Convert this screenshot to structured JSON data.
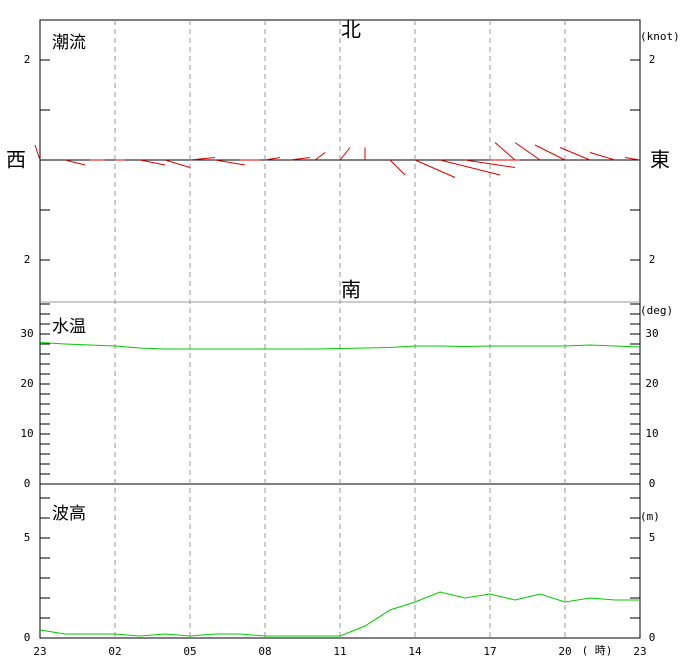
{
  "chart_data": [
    {
      "type": "vector",
      "title": "潮流",
      "unit": "(knot)",
      "north": "北",
      "south": "南",
      "west": "西",
      "east": "東",
      "ylim": [
        -2.84,
        2.8
      ],
      "yticks": [
        2,
        {
          "value": -2,
          "label": "2"
        }
      ],
      "minor_yticks": [
        -1,
        0,
        1
      ],
      "color": "#dd0000",
      "series": [
        {
          "name": "east",
          "values": [
            -0.1,
            0.4,
            0.3,
            0.2,
            0.5,
            0.5,
            0.5,
            0.6,
            0.4,
            0.3,
            0.4,
            0.2,
            0.2,
            0,
            0.3,
            0.8,
            1.2,
            1.0,
            0.6,
            -0.4,
            -0.5,
            -0.6,
            -0.6,
            -0.5,
            -0.3
          ]
        },
        {
          "name": "north",
          "values": [
            0.3,
            -0.1,
            0,
            0,
            -0.1,
            -0.15,
            0.05,
            -0.1,
            0,
            0.05,
            0.05,
            0.15,
            0.25,
            0.25,
            -0.3,
            -0.35,
            -0.3,
            -0.15,
            0,
            0.35,
            0.35,
            0.3,
            0.25,
            0.15,
            0.05
          ]
        }
      ]
    },
    {
      "type": "line",
      "title": "水温",
      "unit": "(deg)",
      "ylim": [
        0,
        36.4
      ],
      "yticks": [
        0,
        10,
        20,
        30
      ],
      "minor_yticks": [
        2,
        4,
        6,
        8,
        12,
        14,
        16,
        18,
        22,
        24,
        26,
        28,
        32,
        34,
        36
      ],
      "color": "#00cc00",
      "values": [
        28.3,
        28,
        27.8,
        27.6,
        27.2,
        27,
        27,
        27,
        27,
        27,
        27,
        27,
        27.1,
        27.2,
        27.3,
        27.6,
        27.6,
        27.5,
        27.6,
        27.6,
        27.6,
        27.6,
        27.8,
        27.6,
        27.4
      ]
    },
    {
      "type": "line",
      "title": "波高",
      "unit": "(m)",
      "ylim": [
        0,
        7.7
      ],
      "yticks": [
        0,
        5
      ],
      "minor_yticks": [
        1,
        2,
        3,
        4,
        6,
        7
      ],
      "color": "#00cc00",
      "x_unit": "( 時)",
      "categories": [
        "23",
        null,
        null,
        "02",
        null,
        null,
        "05",
        null,
        null,
        "08",
        null,
        null,
        "11",
        null,
        null,
        "14",
        null,
        null,
        "17",
        null,
        null,
        "20",
        null,
        null,
        "23"
      ],
      "values": [
        0.4,
        0.2,
        0.2,
        0.2,
        0.1,
        0.2,
        0.1,
        0.2,
        0.2,
        0.1,
        0.1,
        0.1,
        0.1,
        0.6,
        1.4,
        1.8,
        2.3,
        2.0,
        2.2,
        1.9,
        2.2,
        1.8,
        2.0,
        1.9,
        1.9
      ]
    }
  ]
}
